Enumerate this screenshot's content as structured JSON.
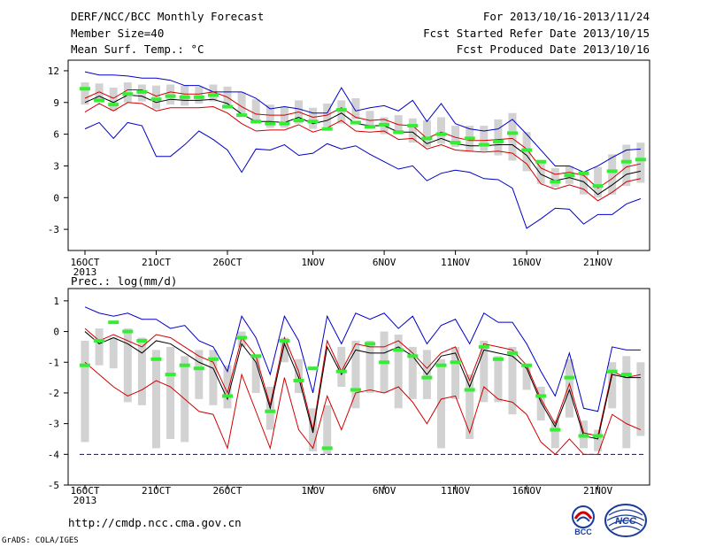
{
  "header": {
    "title": "DERF/NCC/BCC Monthly Forecast",
    "member_size": "Member Size=40",
    "variable": "Mean Surf. Temp.: °C",
    "forecast_period": "For 2013/10/16-2013/11/24",
    "started_refer_date": "Fcst Started Refer Date 2013/10/15",
    "produced_date": "Fcst Produced Date 2013/10/16"
  },
  "footer": {
    "url": "http://cmdp.ncc.cma.gov.cn",
    "credit": "GrADS: COLA/IGES",
    "logo_bcc_text": "BCC",
    "logo_ncc_text": "NCC"
  },
  "colors": {
    "box": "#d2d2d2",
    "ensemble_mean": "#000000",
    "inner_spread": "#d00000",
    "outer_envelope": "#0000c8",
    "member_mark": "#33ee33",
    "floor": "#0000c8"
  },
  "chart_data": [
    {
      "type": "line",
      "title": "",
      "ylabel": "",
      "ylim": [
        -5,
        13
      ],
      "yticks": [
        12,
        9,
        6,
        3,
        0,
        -3
      ],
      "xticks": [
        {
          "day": 1,
          "label": "16OCT",
          "sublabel": "2013"
        },
        {
          "day": 6,
          "label": "21OCT"
        },
        {
          "day": 11,
          "label": "26OCT"
        },
        {
          "day": 17,
          "label": "1NOV"
        },
        {
          "day": 22,
          "label": "6NOV"
        },
        {
          "day": 27,
          "label": "11NOV"
        },
        {
          "day": 32,
          "label": "16NOV"
        },
        {
          "day": 37,
          "label": "21NOV"
        }
      ],
      "grid": false,
      "days": [
        1,
        2,
        3,
        4,
        5,
        6,
        7,
        8,
        9,
        10,
        11,
        12,
        13,
        14,
        15,
        16,
        17,
        18,
        19,
        20,
        21,
        22,
        23,
        24,
        25,
        26,
        27,
        28,
        29,
        30,
        31,
        32,
        33,
        34,
        35,
        36,
        37,
        38,
        39,
        40
      ],
      "box_low": [
        8.8,
        9.0,
        8.2,
        9.0,
        9.1,
        8.4,
        8.8,
        8.7,
        8.9,
        9.1,
        8.6,
        7.8,
        7.0,
        6.6,
        6.6,
        7.0,
        6.5,
        6.7,
        7.0,
        7.4,
        6.6,
        6.0,
        6.0,
        5.2,
        4.8,
        5.1,
        4.8,
        4.4,
        4.4,
        4.0,
        3.5,
        2.5,
        1.3,
        1.0,
        1.3,
        0.3,
        0.0,
        0.3,
        1.1,
        1.4
      ],
      "box_high": [
        10.9,
        10.8,
        10.4,
        10.9,
        10.7,
        10.6,
        10.7,
        10.6,
        10.5,
        10.7,
        10.5,
        10.0,
        9.3,
        8.8,
        8.6,
        9.2,
        8.5,
        8.9,
        9.2,
        9.4,
        8.2,
        7.6,
        7.8,
        7.5,
        7.3,
        7.6,
        6.8,
        6.8,
        6.8,
        7.4,
        8.0,
        6.2,
        3.4,
        2.8,
        3.0,
        2.2,
        2.9,
        4.1,
        5.0,
        5.2
      ],
      "member_mark": [
        10.3,
        9.2,
        8.8,
        9.8,
        10.0,
        9.3,
        9.6,
        9.5,
        9.5,
        9.7,
        8.6,
        7.8,
        7.2,
        7.0,
        7.0,
        7.3,
        7.2,
        6.5,
        8.3,
        7.1,
        6.7,
        6.9,
        6.2,
        6.8,
        5.6,
        6.0,
        5.2,
        5.6,
        5.0,
        5.3,
        6.1,
        4.5,
        3.4,
        1.5,
        2.1,
        2.3,
        1.1,
        2.5,
        3.4,
        3.6
      ],
      "series": [
        {
          "role": "outer_high",
          "values": [
            11.9,
            11.6,
            11.6,
            11.5,
            11.3,
            11.3,
            11.1,
            10.6,
            10.6,
            10.0,
            10.0,
            10.0,
            9.4,
            8.4,
            8.6,
            8.4,
            8.0,
            8.0,
            10.4,
            8.2,
            8.5,
            8.7,
            8.2,
            9.2,
            7.2,
            8.9,
            7.0,
            6.5,
            6.3,
            6.5,
            7.4,
            6.0,
            4.5,
            3.0,
            3.0,
            2.4,
            3.0,
            3.8,
            4.5,
            4.6
          ]
        },
        {
          "role": "inner_high",
          "values": [
            9.4,
            10.0,
            9.4,
            10.2,
            10.2,
            9.6,
            10.0,
            9.8,
            9.8,
            10.0,
            9.5,
            8.6,
            7.9,
            7.8,
            7.8,
            8.1,
            7.6,
            7.8,
            8.5,
            7.6,
            7.3,
            7.4,
            6.9,
            6.8,
            5.6,
            6.2,
            5.7,
            5.4,
            5.4,
            5.5,
            5.6,
            4.6,
            2.8,
            2.2,
            2.4,
            2.1,
            0.9,
            1.8,
            2.9,
            3.2
          ]
        },
        {
          "role": "mean",
          "values": [
            9.0,
            9.6,
            9.0,
            9.7,
            9.6,
            9.0,
            9.3,
            9.2,
            9.2,
            9.3,
            8.9,
            7.9,
            7.2,
            7.2,
            7.1,
            7.6,
            7.0,
            7.3,
            8.0,
            7.0,
            6.8,
            6.8,
            6.2,
            6.2,
            5.1,
            5.6,
            5.1,
            4.9,
            4.9,
            5.0,
            5.0,
            4.0,
            2.2,
            1.6,
            1.9,
            1.5,
            0.3,
            1.2,
            2.2,
            2.5
          ]
        },
        {
          "role": "inner_low",
          "values": [
            8.1,
            8.9,
            8.2,
            9.0,
            8.9,
            8.2,
            8.5,
            8.5,
            8.5,
            8.6,
            8.0,
            7.0,
            6.3,
            6.4,
            6.4,
            6.9,
            6.2,
            6.6,
            7.3,
            6.3,
            6.2,
            6.3,
            5.5,
            5.6,
            4.6,
            5.0,
            4.5,
            4.4,
            4.3,
            4.4,
            4.2,
            3.2,
            1.3,
            0.8,
            1.2,
            0.8,
            -0.3,
            0.5,
            1.5,
            1.8
          ]
        },
        {
          "role": "outer_low",
          "values": [
            6.5,
            7.1,
            5.6,
            7.1,
            6.8,
            3.9,
            3.9,
            5.0,
            6.3,
            5.5,
            4.5,
            2.4,
            4.6,
            4.5,
            5.0,
            4.0,
            4.2,
            5.1,
            4.6,
            4.9,
            4.1,
            3.4,
            2.7,
            3.0,
            1.6,
            2.3,
            2.6,
            2.4,
            1.8,
            1.7,
            0.9,
            -2.9,
            -2.0,
            -1.0,
            -1.1,
            -2.5,
            -1.6,
            -1.6,
            -0.6,
            -0.1
          ]
        }
      ]
    },
    {
      "type": "line",
      "title": "Prec.: log(mm/d)",
      "ylabel": "",
      "ylim": [
        -5,
        1.4
      ],
      "yticks": [
        1,
        0,
        -1,
        -2,
        -3,
        -4,
        -5
      ],
      "xticks": [
        {
          "day": 1,
          "label": "16OCT",
          "sublabel": "2013"
        },
        {
          "day": 6,
          "label": "21OCT"
        },
        {
          "day": 11,
          "label": "26OCT"
        },
        {
          "day": 17,
          "label": "1NOV"
        },
        {
          "day": 22,
          "label": "6NOV"
        },
        {
          "day": 27,
          "label": "11NOV"
        },
        {
          "day": 32,
          "label": "16NOV"
        },
        {
          "day": 37,
          "label": "21NOV"
        }
      ],
      "grid": false,
      "floor": -4.0,
      "days": [
        1,
        2,
        3,
        4,
        5,
        6,
        7,
        8,
        9,
        10,
        11,
        12,
        13,
        14,
        15,
        16,
        17,
        18,
        19,
        20,
        21,
        22,
        23,
        24,
        25,
        26,
        27,
        28,
        29,
        30,
        31,
        32,
        33,
        34,
        35,
        36,
        37,
        38,
        39,
        40
      ],
      "box_low": [
        -3.6,
        -1.1,
        -1.2,
        -2.3,
        -2.4,
        -3.8,
        -3.5,
        -3.6,
        -2.2,
        -2.4,
        -2.5,
        -0.5,
        -2.0,
        -3.2,
        -1.0,
        -2.0,
        -3.9,
        -4.0,
        -1.8,
        -2.5,
        -2.0,
        -2.0,
        -2.5,
        -2.2,
        -2.2,
        -3.8,
        -2.2,
        -3.5,
        -2.3,
        -2.3,
        -2.7,
        -1.9,
        -2.9,
        -3.8,
        -2.8,
        -3.8,
        -3.9,
        -2.5,
        -3.8,
        -3.4
      ],
      "box_high": [
        -0.3,
        0.1,
        -0.2,
        0.1,
        -0.2,
        -0.6,
        -0.5,
        -0.8,
        -0.6,
        -0.6,
        -1.1,
        0.0,
        -0.8,
        -1.8,
        -0.2,
        -0.9,
        -2.5,
        -2.4,
        -0.5,
        -0.3,
        -0.3,
        0.0,
        -0.1,
        -0.5,
        -0.6,
        -0.9,
        -0.5,
        -1.4,
        -0.3,
        -0.8,
        -0.5,
        -1.1,
        -1.8,
        -2.9,
        -0.9,
        -2.9,
        -3.2,
        -1.0,
        -0.8,
        -1.0
      ],
      "member_mark": [
        -1.1,
        -0.3,
        0.3,
        0.0,
        -0.3,
        -0.9,
        -1.4,
        -1.1,
        -1.2,
        -0.9,
        -2.1,
        -0.2,
        -0.8,
        -2.6,
        -0.3,
        -1.6,
        -1.2,
        -3.8,
        -1.3,
        -1.9,
        -0.4,
        -1.0,
        -0.6,
        -0.8,
        -1.5,
        -1.1,
        -1.0,
        -1.9,
        -0.5,
        -0.9,
        -0.7,
        -1.1,
        -2.1,
        -3.2,
        -1.5,
        -3.4,
        -3.4,
        -1.3,
        -1.4,
        null
      ],
      "series": [
        {
          "role": "outer_high",
          "values": [
            0.8,
            0.6,
            0.5,
            0.6,
            0.4,
            0.4,
            0.1,
            0.2,
            -0.3,
            -0.5,
            -1.3,
            0.5,
            -0.2,
            -1.4,
            0.5,
            -0.3,
            -2.0,
            0.5,
            -0.4,
            0.6,
            0.4,
            0.6,
            0.1,
            0.5,
            -0.4,
            0.2,
            0.4,
            -0.4,
            0.6,
            0.3,
            0.3,
            -0.4,
            -1.3,
            -2.1,
            -0.7,
            -2.5,
            -2.6,
            -0.5,
            -0.6,
            -0.6
          ]
        },
        {
          "role": "inner_high",
          "values": [
            0.1,
            -0.3,
            -0.1,
            -0.3,
            -0.5,
            -0.1,
            -0.2,
            -0.5,
            -0.8,
            -1.0,
            -2.0,
            -0.2,
            -0.8,
            -2.4,
            -0.2,
            -1.3,
            -3.2,
            -0.3,
            -1.3,
            -0.4,
            -0.5,
            -0.5,
            -0.3,
            -0.7,
            -1.2,
            -0.7,
            -0.5,
            -1.6,
            -0.4,
            -0.5,
            -0.6,
            -1.1,
            -2.2,
            -3.0,
            -1.7,
            -3.3,
            -3.4,
            -1.3,
            -1.5,
            -1.4
          ]
        },
        {
          "role": "mean",
          "values": [
            0.0,
            -0.4,
            -0.2,
            -0.4,
            -0.7,
            -0.3,
            -0.4,
            -0.7,
            -1.0,
            -1.2,
            -2.2,
            -0.4,
            -1.0,
            -2.5,
            -0.4,
            -1.5,
            -3.3,
            -0.5,
            -1.4,
            -0.6,
            -0.7,
            -0.7,
            -0.5,
            -0.8,
            -1.4,
            -0.8,
            -0.7,
            -1.8,
            -0.6,
            -0.7,
            -0.8,
            -1.2,
            -2.3,
            -3.1,
            -1.9,
            -3.4,
            -3.5,
            -1.4,
            -1.5,
            -1.5
          ]
        },
        {
          "role": "inner_low",
          "values": [
            -1.0,
            -1.4,
            -1.8,
            -2.1,
            -1.9,
            -1.6,
            -1.8,
            -2.2,
            -2.6,
            -2.7,
            -3.8,
            -1.4,
            -2.6,
            -3.8,
            -1.5,
            -3.2,
            -3.8,
            -2.1,
            -3.2,
            -2.0,
            -1.9,
            -2.0,
            -1.8,
            -2.3,
            -3.0,
            -2.2,
            -2.1,
            -3.3,
            -1.8,
            -2.2,
            -2.3,
            -2.7,
            -3.6,
            -4.0,
            -3.5,
            -4.0,
            -4.0,
            -2.7,
            -3.0,
            -3.2
          ]
        },
        {
          "role": "outer_low",
          "values": [
            -4.0,
            -4.0,
            -4.0,
            -4.0,
            -4.0,
            -4.0,
            -4.0,
            -4.0,
            -4.0,
            -4.0,
            -4.0,
            -4.0,
            -4.0,
            -4.0,
            -4.0,
            -4.0,
            -4.0,
            -4.0,
            -4.0,
            -4.0,
            -4.0,
            -4.0,
            -4.0,
            -4.0,
            -4.0,
            -4.0,
            -4.0,
            -4.0,
            -4.0,
            -4.0,
            -4.0,
            -4.0,
            -4.0,
            -4.0,
            -4.0,
            -4.0,
            -4.0,
            -4.0,
            -4.0,
            -4.0
          ]
        }
      ]
    }
  ]
}
